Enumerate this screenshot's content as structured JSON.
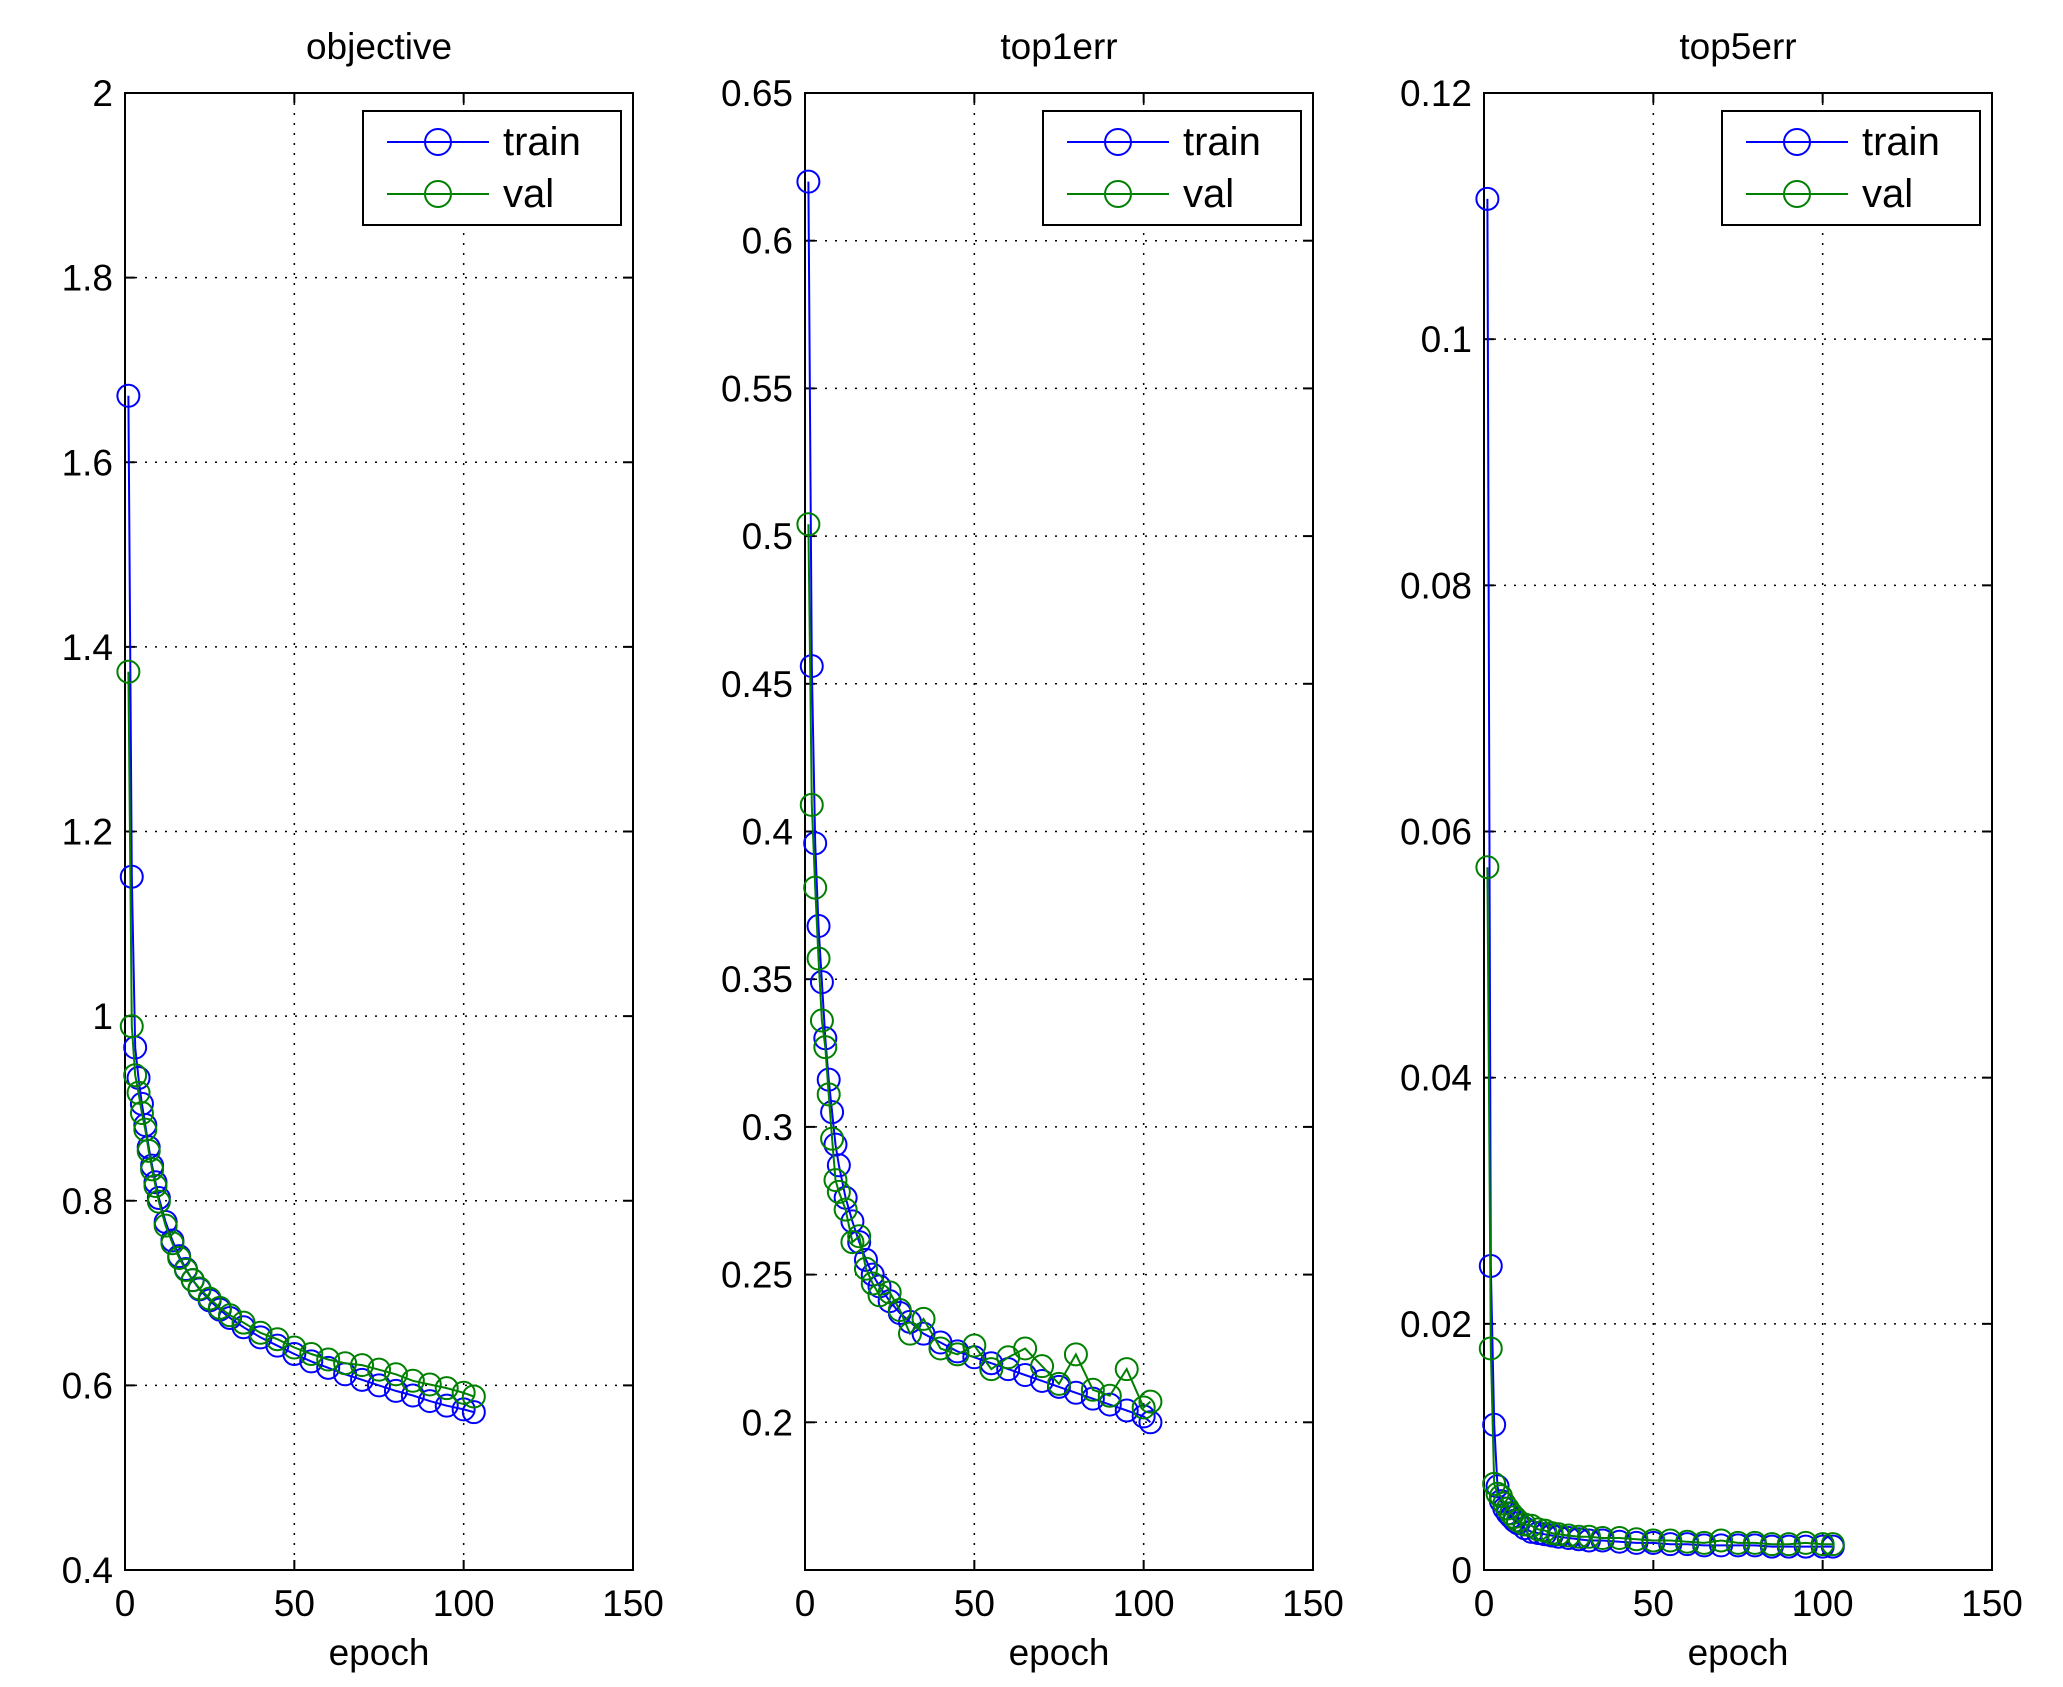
{
  "figure": {
    "background": "#ffffff"
  },
  "chart_data": [
    {
      "type": "line",
      "title": "objective",
      "xlabel": "epoch",
      "ylabel": "",
      "xlim": [
        0,
        150
      ],
      "ylim": [
        0.4,
        2
      ],
      "xticks": [
        0,
        50,
        100,
        150
      ],
      "xtick_labels": [
        "0",
        "50",
        "100",
        "150"
      ],
      "yticks": [
        0.4,
        0.6,
        0.8,
        1,
        1.2,
        1.4,
        1.6,
        1.8,
        2
      ],
      "ytick_labels": [
        "0.4",
        "0.6",
        "0.8",
        "1",
        "1.2",
        "1.4",
        "1.6",
        "1.8",
        "2"
      ],
      "grid": true,
      "legend_position": "top-right",
      "legend": [
        "train",
        "val"
      ],
      "series": [
        {
          "name": "train",
          "color": "#0000ff",
          "marker": "circle",
          "x": [
            1,
            2,
            3,
            4,
            5,
            6,
            7,
            8,
            9,
            10,
            12,
            14,
            16,
            18,
            20,
            22,
            25,
            28,
            31,
            35,
            40,
            45,
            50,
            55,
            60,
            65,
            70,
            75,
            80,
            85,
            90,
            95,
            100,
            103
          ],
          "y": [
            1.672,
            1.151,
            0.966,
            0.933,
            0.905,
            0.882,
            0.858,
            0.838,
            0.82,
            0.803,
            0.777,
            0.757,
            0.74,
            0.726,
            0.714,
            0.704,
            0.692,
            0.682,
            0.673,
            0.663,
            0.652,
            0.643,
            0.634,
            0.626,
            0.619,
            0.612,
            0.606,
            0.6,
            0.594,
            0.589,
            0.583,
            0.578,
            0.574,
            0.571
          ]
        },
        {
          "name": "val",
          "color": "#008000",
          "marker": "circle",
          "x": [
            1,
            2,
            3,
            4,
            5,
            6,
            7,
            8,
            9,
            10,
            12,
            14,
            16,
            18,
            20,
            22,
            25,
            28,
            31,
            35,
            40,
            45,
            50,
            55,
            60,
            65,
            70,
            75,
            80,
            85,
            90,
            95,
            100,
            103
          ],
          "y": [
            1.373,
            0.989,
            0.936,
            0.917,
            0.895,
            0.877,
            0.854,
            0.834,
            0.816,
            0.799,
            0.773,
            0.754,
            0.738,
            0.725,
            0.714,
            0.705,
            0.694,
            0.684,
            0.676,
            0.668,
            0.657,
            0.65,
            0.641,
            0.634,
            0.628,
            0.624,
            0.622,
            0.617,
            0.612,
            0.605,
            0.601,
            0.597,
            0.592,
            0.588
          ]
        }
      ]
    },
    {
      "type": "line",
      "title": "top1err",
      "xlabel": "epoch",
      "ylabel": "",
      "xlim": [
        0,
        150
      ],
      "ylim": [
        0.15,
        0.65
      ],
      "xticks": [
        0,
        50,
        100,
        150
      ],
      "xtick_labels": [
        "0",
        "50",
        "100",
        "150"
      ],
      "yticks": [
        0.2,
        0.25,
        0.3,
        0.35,
        0.4,
        0.45,
        0.5,
        0.55,
        0.6,
        0.65
      ],
      "ytick_labels": [
        "0.2",
        "0.25",
        "0.3",
        "0.35",
        "0.4",
        "0.45",
        "0.5",
        "0.55",
        "0.6",
        "0.65"
      ],
      "grid": true,
      "legend_position": "top-right",
      "legend": [
        "train",
        "val"
      ],
      "series": [
        {
          "name": "train",
          "color": "#0000ff",
          "marker": "circle",
          "x": [
            1,
            2,
            3,
            4,
            5,
            6,
            7,
            8,
            9,
            10,
            12,
            14,
            16,
            18,
            20,
            22,
            25,
            28,
            31,
            35,
            40,
            45,
            50,
            55,
            60,
            65,
            70,
            75,
            80,
            85,
            90,
            95,
            100,
            102
          ],
          "y": [
            0.62,
            0.456,
            0.396,
            0.368,
            0.349,
            0.33,
            0.316,
            0.305,
            0.294,
            0.287,
            0.276,
            0.268,
            0.261,
            0.255,
            0.25,
            0.246,
            0.241,
            0.237,
            0.234,
            0.23,
            0.227,
            0.224,
            0.222,
            0.22,
            0.218,
            0.216,
            0.214,
            0.212,
            0.21,
            0.208,
            0.206,
            0.204,
            0.202,
            0.2
          ]
        },
        {
          "name": "val",
          "color": "#008000",
          "marker": "circle",
          "x": [
            1,
            2,
            3,
            4,
            5,
            6,
            7,
            8,
            9,
            10,
            12,
            14,
            16,
            18,
            20,
            22,
            25,
            28,
            31,
            35,
            40,
            45,
            50,
            55,
            60,
            65,
            70,
            75,
            80,
            85,
            90,
            95,
            100,
            102
          ],
          "y": [
            0.504,
            0.409,
            0.381,
            0.357,
            0.336,
            0.327,
            0.311,
            0.296,
            0.282,
            0.278,
            0.272,
            0.261,
            0.263,
            0.252,
            0.247,
            0.243,
            0.244,
            0.238,
            0.23,
            0.235,
            0.225,
            0.223,
            0.226,
            0.218,
            0.222,
            0.225,
            0.219,
            0.213,
            0.223,
            0.211,
            0.209,
            0.218,
            0.205,
            0.207
          ]
        }
      ]
    },
    {
      "type": "line",
      "title": "top5err",
      "xlabel": "epoch",
      "ylabel": "",
      "xlim": [
        0,
        150
      ],
      "ylim": [
        0,
        0.12
      ],
      "xticks": [
        0,
        50,
        100,
        150
      ],
      "xtick_labels": [
        "0",
        "50",
        "100",
        "150"
      ],
      "yticks": [
        0,
        0.02,
        0.04,
        0.06,
        0.08,
        0.1,
        0.12
      ],
      "ytick_labels": [
        "0",
        "0.02",
        "0.04",
        "0.06",
        "0.08",
        "0.1",
        "0.12"
      ],
      "grid": true,
      "legend_position": "top-right",
      "legend": [
        "train",
        "val"
      ],
      "series": [
        {
          "name": "train",
          "color": "#0000ff",
          "marker": "circle",
          "x": [
            1,
            2,
            3,
            4,
            5,
            6,
            7,
            8,
            9,
            10,
            12,
            14,
            16,
            18,
            20,
            22,
            25,
            28,
            31,
            35,
            40,
            45,
            50,
            55,
            60,
            65,
            70,
            75,
            80,
            85,
            90,
            95,
            100,
            103
          ],
          "y": [
            0.1114,
            0.0247,
            0.0118,
            0.0068,
            0.0056,
            0.005,
            0.0046,
            0.0043,
            0.004,
            0.0038,
            0.0034,
            0.0031,
            0.003,
            0.0029,
            0.0028,
            0.0027,
            0.0026,
            0.0025,
            0.0024,
            0.0024,
            0.0023,
            0.0022,
            0.0022,
            0.0021,
            0.0021,
            0.002,
            0.002,
            0.002,
            0.002,
            0.0019,
            0.0019,
            0.0019,
            0.0019,
            0.0019
          ]
        },
        {
          "name": "val",
          "color": "#008000",
          "marker": "circle",
          "x": [
            1,
            2,
            3,
            4,
            5,
            6,
            7,
            8,
            9,
            10,
            12,
            14,
            16,
            18,
            20,
            22,
            25,
            28,
            31,
            35,
            40,
            45,
            50,
            55,
            60,
            65,
            70,
            75,
            80,
            85,
            90,
            95,
            100,
            103
          ],
          "y": [
            0.0571,
            0.018,
            0.007,
            0.0062,
            0.006,
            0.0054,
            0.005,
            0.0046,
            0.0043,
            0.004,
            0.0037,
            0.0036,
            0.0033,
            0.0032,
            0.003,
            0.0029,
            0.0028,
            0.0027,
            0.0027,
            0.0026,
            0.0026,
            0.0025,
            0.0024,
            0.0024,
            0.0023,
            0.0022,
            0.0024,
            0.0022,
            0.0022,
            0.0021,
            0.0021,
            0.0022,
            0.0021,
            0.0021
          ]
        }
      ]
    }
  ]
}
